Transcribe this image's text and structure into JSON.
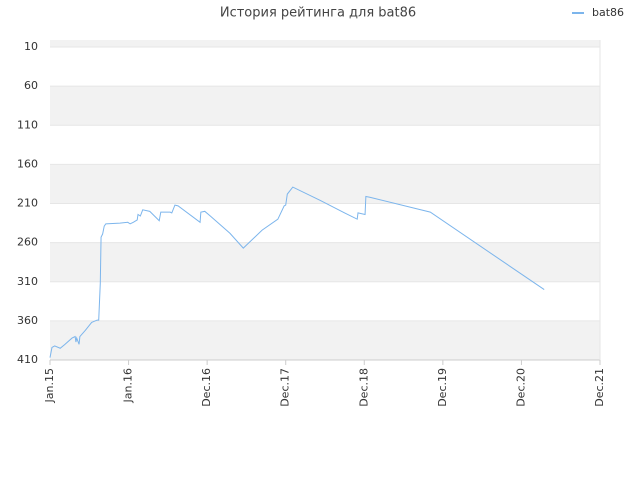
{
  "chart_data": {
    "type": "line",
    "title": "История рейтинга для bat86",
    "ylim": [
      1,
      410
    ],
    "y_inverted": true,
    "yticks": [
      10,
      60,
      110,
      160,
      210,
      260,
      310,
      360,
      410
    ],
    "xlim": [
      0,
      7
    ],
    "xticks": [
      {
        "value": 0,
        "label": "Jan.15"
      },
      {
        "value": 1,
        "label": "Jan.16"
      },
      {
        "value": 2,
        "label": "Dec.16"
      },
      {
        "value": 3,
        "label": "Dec.17"
      },
      {
        "value": 4,
        "label": "Dec.18"
      },
      {
        "value": 5,
        "label": "Dec.19"
      },
      {
        "value": 6,
        "label": "Dec.20"
      },
      {
        "value": 7,
        "label": "Dec.21"
      }
    ],
    "grid": true,
    "legend": "top-right",
    "series": [
      {
        "name": "bat86",
        "color": "#7cb5ec",
        "x": [
          0,
          0.025,
          0.06,
          0.13,
          0.19,
          0.28,
          0.32,
          0.33,
          0.34,
          0.37,
          0.38,
          0.45,
          0.53,
          0.6,
          0.62,
          0.64,
          0.65,
          0.67,
          0.69,
          0.71,
          0.89,
          0.99,
          1.02,
          1.06,
          1.11,
          1.12,
          1.15,
          1.18,
          1.27,
          1.36,
          1.39,
          1.41,
          1.53,
          1.55,
          1.59,
          1.63,
          1.91,
          1.92,
          1.97,
          2.04,
          2.29,
          2.46,
          2.7,
          2.9,
          2.98,
          3.0,
          3.02,
          3.09,
          3.44,
          3.75,
          3.91,
          3.92,
          4.01,
          4.02,
          4.07,
          4.84,
          6.29
        ],
        "values": [
          407,
          394,
          392,
          395,
          390,
          382,
          380,
          387,
          382,
          390,
          380,
          372,
          362,
          359,
          359,
          312,
          253,
          249,
          239,
          236,
          235,
          234,
          236,
          234,
          231,
          224,
          226,
          218,
          220,
          229,
          232,
          221,
          221,
          222,
          212,
          213,
          234,
          221,
          220,
          226,
          248,
          267,
          244,
          230,
          213,
          212,
          198,
          189,
          206,
          222,
          230,
          222,
          224,
          201,
          202,
          221,
          320
        ]
      }
    ]
  }
}
